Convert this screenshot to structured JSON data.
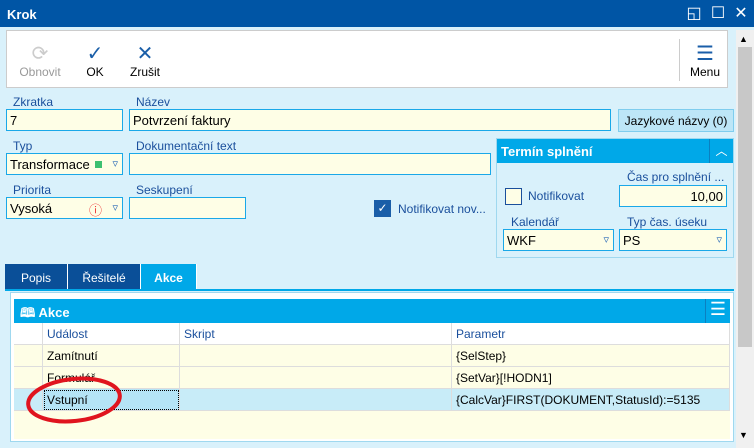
{
  "window": {
    "title": "Krok"
  },
  "toolbar": {
    "refresh": "Obnovit",
    "ok": "OK",
    "cancel": "Zrušit",
    "menu": "Menu"
  },
  "form": {
    "zkratka_label": "Zkratka",
    "zkratka": "7",
    "nazev_label": "Název",
    "nazev": "Potvrzení faktury",
    "lang_button": "Jazykové názvy (0)",
    "typ_label": "Typ",
    "typ": "Transformace",
    "doc_label": "Dokumentační text",
    "doc": "",
    "priorita_label": "Priorita",
    "priorita": "Vysoká",
    "seskupeni_label": "Seskupení",
    "seskupeni": "",
    "notify_new_label": "Notifikovat nov...",
    "notify_new_checked": true
  },
  "deadline": {
    "title": "Termín splnění",
    "notify_label": "Notifikovat",
    "notify_checked": false,
    "time_label": "Čas pro splnění ...",
    "time": "10,00",
    "calendar_label": "Kalendář",
    "calendar": "WKF",
    "period_label": "Typ čas. úseku",
    "period": "PS"
  },
  "tabs": [
    {
      "label": "Popis"
    },
    {
      "label": "Řešitelé"
    },
    {
      "label": "Akce",
      "active": true
    }
  ],
  "grid": {
    "title": "Akce",
    "columns": [
      "Událost",
      "Skript",
      "Parametr"
    ],
    "rows": [
      {
        "event": "Zamítnutí",
        "script": "",
        "param": "{SelStep}"
      },
      {
        "event": "Formulář",
        "script": "",
        "param": "{SetVar}[!HODN1]"
      },
      {
        "event": "Vstupní",
        "script": "",
        "param": "{CalcVar}FIRST(DOKUMENT,StatusId):=5135",
        "selected": true
      }
    ]
  },
  "colors": {
    "titlebar": "#0055a5",
    "accent": "#00a8e8",
    "annotation": "#e0141e"
  }
}
